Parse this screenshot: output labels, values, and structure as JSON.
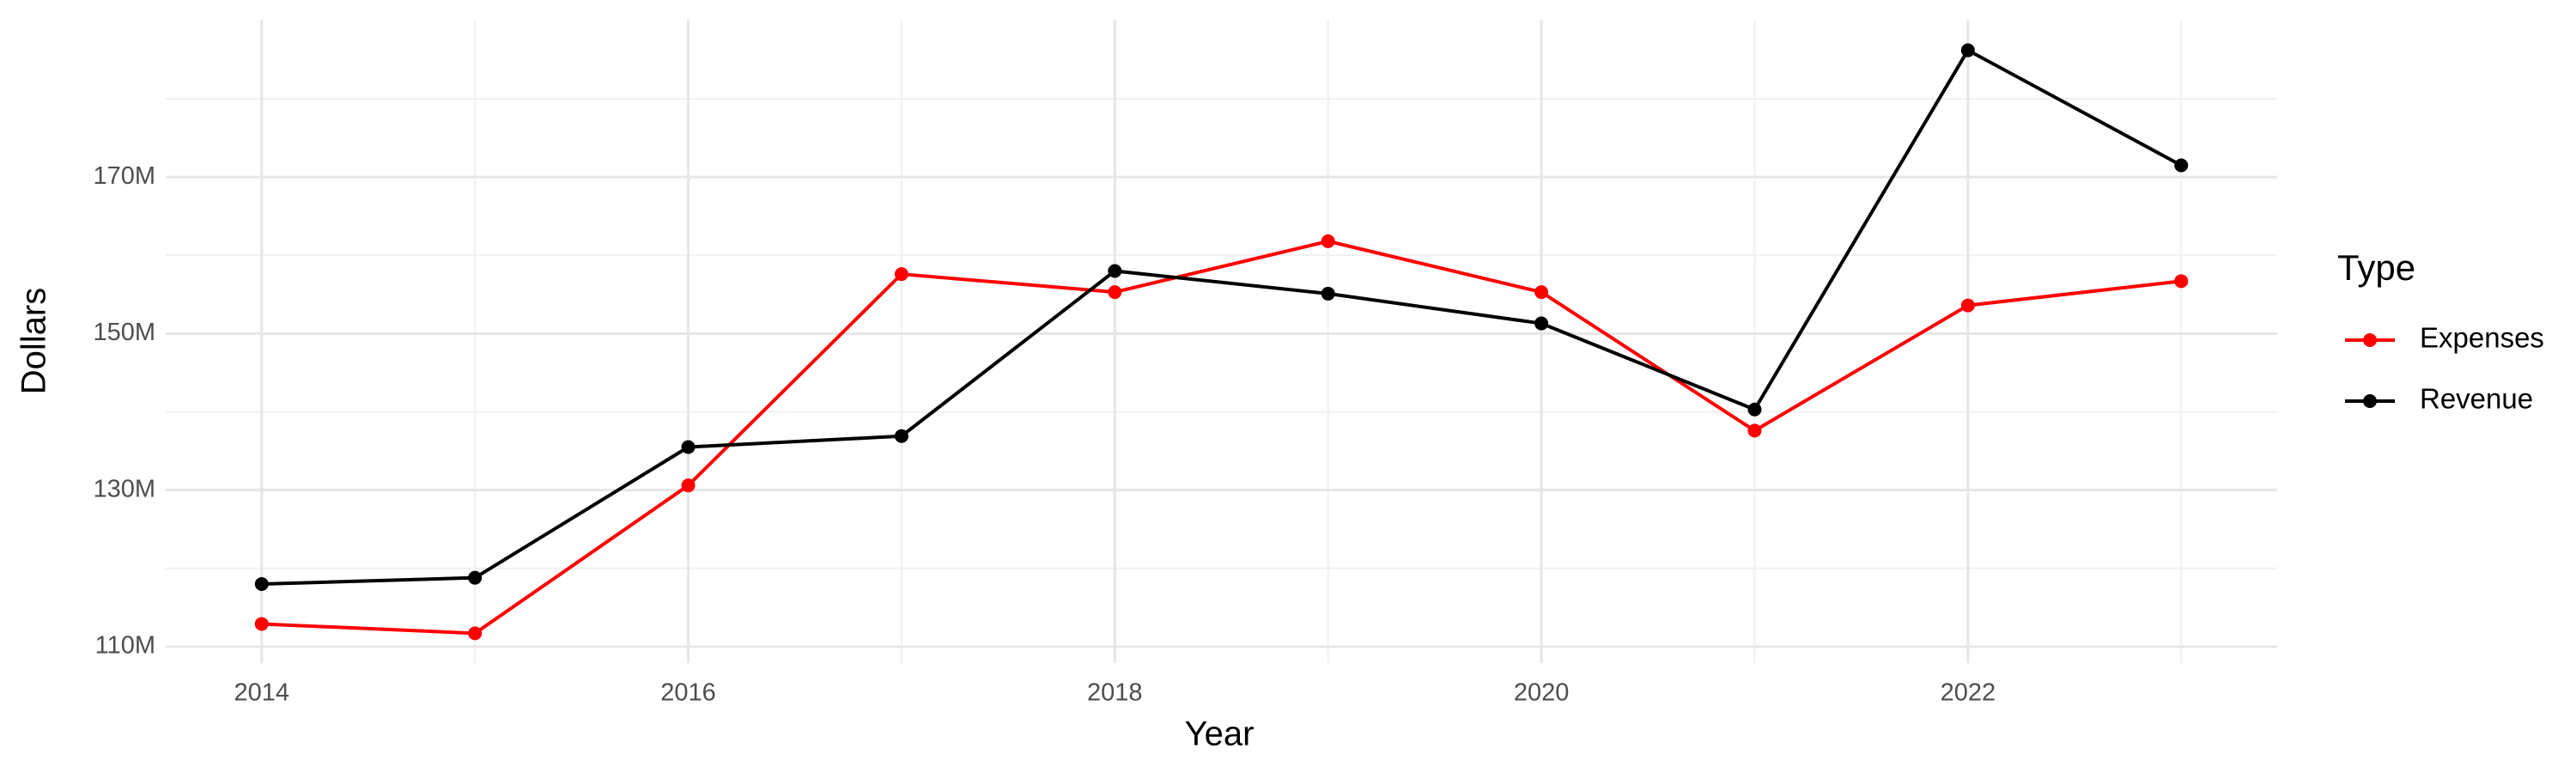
{
  "chart_data": {
    "type": "line",
    "x_label": "Year",
    "y_label": "Dollars",
    "x": [
      2014,
      2015,
      2016,
      2017,
      2018,
      2019,
      2020,
      2021,
      2022,
      2023
    ],
    "series": [
      {
        "name": "Expenses",
        "color": "#ff0000",
        "values": [
          112900000,
          111700000,
          130600000,
          157600000,
          155300000,
          161800000,
          155300000,
          137600000,
          153600000,
          156700000
        ]
      },
      {
        "name": "Revenue",
        "color": "#000000",
        "values": [
          118000000,
          118800000,
          135500000,
          136900000,
          158000000,
          155100000,
          151300000,
          140300000,
          186200000,
          171500000
        ]
      }
    ],
    "xlim": [
      2013.55,
      2023.45
    ],
    "xticks": [
      2014,
      2016,
      2018,
      2020,
      2022
    ],
    "ylim": [
      107900000,
      190100000
    ],
    "yticks": [
      {
        "value": 110000000,
        "label": "110M"
      },
      {
        "value": 130000000,
        "label": "130M"
      },
      {
        "value": 150000000,
        "label": "150M"
      },
      {
        "value": 170000000,
        "label": "170M"
      }
    ],
    "grid": true,
    "legend_title": "Type",
    "legend_position": "right"
  }
}
